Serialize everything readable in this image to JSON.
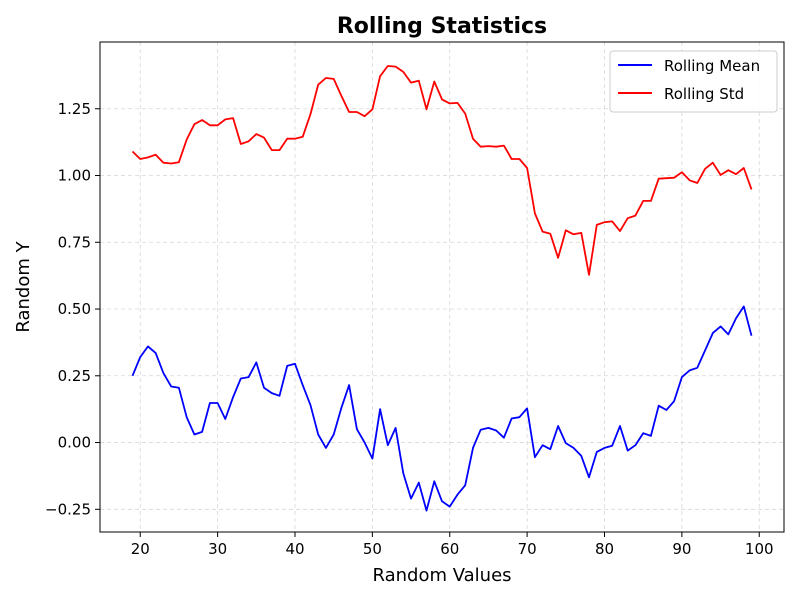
{
  "chart_data": {
    "type": "line",
    "title": "Rolling Statistics",
    "xlabel": "Random Values",
    "ylabel": "Random Y",
    "xlim": [
      14.8,
      103.2
    ],
    "ylim": [
      -0.335,
      1.5
    ],
    "xticks": [
      20,
      30,
      40,
      50,
      60,
      70,
      80,
      90,
      100
    ],
    "yticks": [
      -0.25,
      0.0,
      0.25,
      0.5,
      0.75,
      1.0,
      1.25
    ],
    "ytick_labels": [
      "−0.25",
      "0.00",
      "0.25",
      "0.50",
      "0.75",
      "1.00",
      "1.25"
    ],
    "grid": true,
    "legend_position": "top-right",
    "x": [
      19,
      20,
      21,
      22,
      23,
      24,
      25,
      26,
      27,
      28,
      29,
      30,
      31,
      32,
      33,
      34,
      35,
      36,
      37,
      38,
      39,
      40,
      41,
      42,
      43,
      44,
      45,
      46,
      47,
      48,
      49,
      50,
      51,
      52,
      53,
      54,
      55,
      56,
      57,
      58,
      59,
      60,
      61,
      62,
      63,
      64,
      65,
      66,
      67,
      68,
      69,
      70,
      71,
      72,
      73,
      74,
      75,
      76,
      77,
      78,
      79,
      80,
      81,
      82,
      83,
      84,
      85,
      86,
      87,
      88,
      89,
      90,
      91,
      92,
      93,
      94,
      95,
      96,
      97,
      98,
      99
    ],
    "series": [
      {
        "name": "Rolling Mean",
        "color": "#0000ff",
        "values": [
          0.25,
          0.32,
          0.36,
          0.335,
          0.26,
          0.21,
          0.205,
          0.095,
          0.03,
          0.04,
          0.148,
          0.148,
          0.088,
          0.17,
          0.24,
          0.245,
          0.3,
          0.205,
          0.185,
          0.175,
          0.287,
          0.295,
          0.215,
          0.14,
          0.03,
          -0.02,
          0.03,
          0.13,
          0.215,
          0.05,
          0.0,
          -0.06,
          0.125,
          -0.01,
          0.055,
          -0.115,
          -0.21,
          -0.15,
          -0.255,
          -0.145,
          -0.22,
          -0.24,
          -0.195,
          -0.16,
          -0.02,
          0.048,
          0.055,
          0.045,
          0.018,
          0.09,
          0.095,
          0.128,
          -0.055,
          -0.01,
          -0.025,
          0.062,
          -0.002,
          -0.02,
          -0.05,
          -0.13,
          -0.035,
          -0.02,
          -0.012,
          0.062,
          -0.03,
          -0.01,
          0.035,
          0.025,
          0.138,
          0.122,
          0.155,
          0.245,
          0.27,
          0.28,
          0.345,
          0.41,
          0.435,
          0.405,
          0.465,
          0.51,
          0.4
        ]
      },
      {
        "name": "Rolling Std",
        "color": "#ff0000",
        "values": [
          1.09,
          1.062,
          1.068,
          1.078,
          1.048,
          1.045,
          1.05,
          1.135,
          1.192,
          1.208,
          1.188,
          1.188,
          1.21,
          1.215,
          1.118,
          1.128,
          1.155,
          1.142,
          1.095,
          1.095,
          1.138,
          1.138,
          1.145,
          1.23,
          1.34,
          1.365,
          1.362,
          1.298,
          1.238,
          1.238,
          1.222,
          1.248,
          1.372,
          1.41,
          1.408,
          1.388,
          1.348,
          1.355,
          1.248,
          1.352,
          1.285,
          1.27,
          1.272,
          1.232,
          1.138,
          1.108,
          1.11,
          1.108,
          1.112,
          1.062,
          1.062,
          1.028,
          0.858,
          0.79,
          0.782,
          0.692,
          0.795,
          0.78,
          0.785,
          0.628,
          0.815,
          0.825,
          0.828,
          0.792,
          0.84,
          0.85,
          0.905,
          0.905,
          0.988,
          0.99,
          0.992,
          1.012,
          0.982,
          0.972,
          1.025,
          1.048,
          1.002,
          1.02,
          1.005,
          1.028,
          0.948
        ]
      }
    ]
  }
}
